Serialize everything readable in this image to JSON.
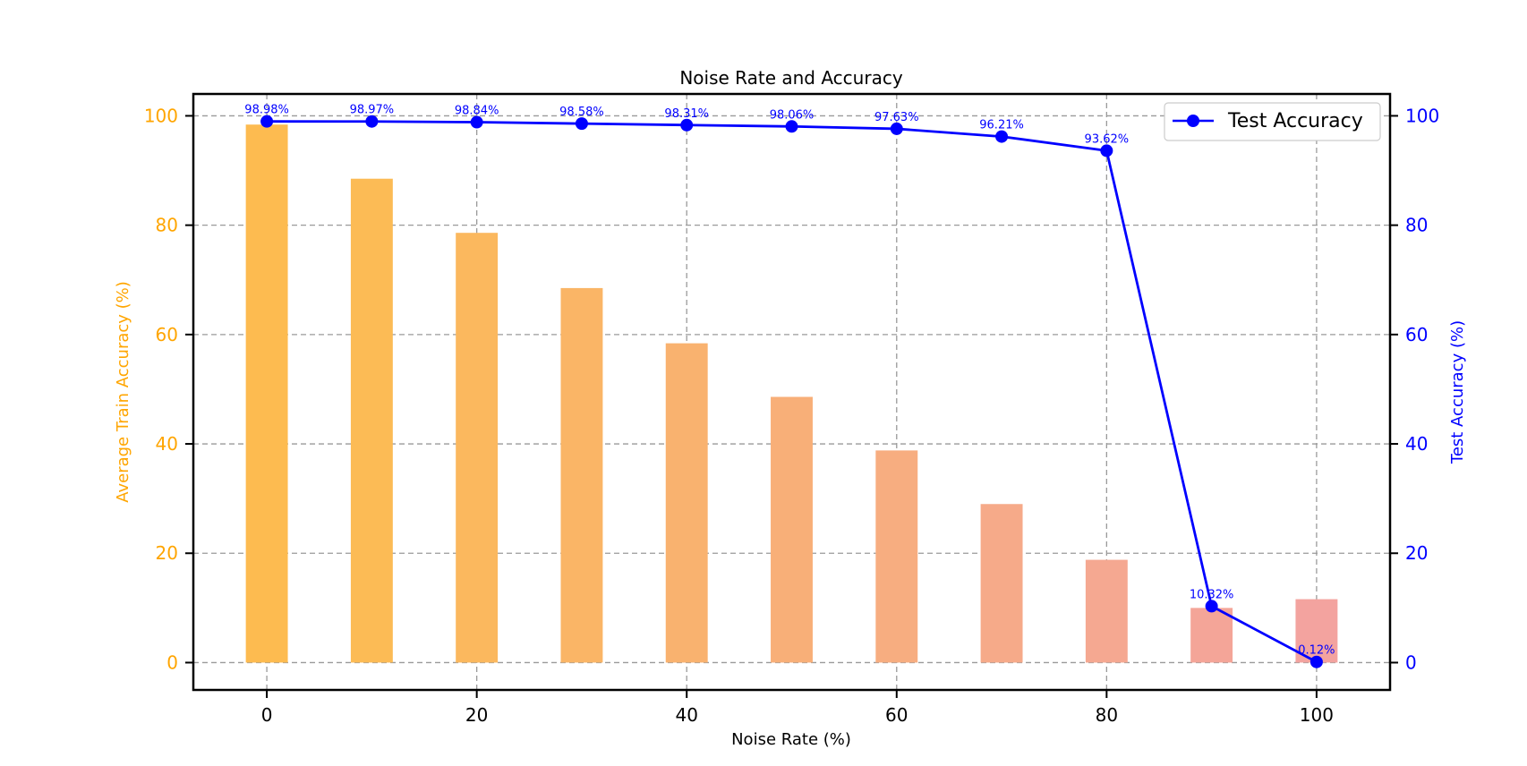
{
  "chart_data": {
    "type": "bar",
    "title": "Noise Rate and Accuracy",
    "xlabel": "Noise Rate (%)",
    "ylabel": "Average Train Accuracy (%)",
    "y2label": "Test Accuracy (%)",
    "x": [
      0,
      10,
      20,
      30,
      40,
      50,
      60,
      70,
      80,
      90,
      100
    ],
    "xlim": [
      -7,
      107
    ],
    "xticks": [
      0,
      20,
      40,
      60,
      80,
      100
    ],
    "ylim": [
      -5,
      104
    ],
    "yticks": [
      0,
      20,
      40,
      60,
      80,
      100
    ],
    "y2lim": [
      -5,
      104
    ],
    "y2ticks": [
      0,
      20,
      40,
      60,
      80,
      100
    ],
    "grid": true,
    "legend_position": "top-right",
    "series": [
      {
        "kind": "bar",
        "axis": "left",
        "values": [
          98.4,
          88.5,
          78.6,
          68.5,
          58.4,
          48.6,
          38.8,
          29.0,
          18.8,
          10.0,
          11.6
        ],
        "colors": [
          "#fdbb50",
          "#fcbb55",
          "#fbb85e",
          "#fab566",
          "#f9b26f",
          "#f8af78",
          "#f7ad80",
          "#f6aa89",
          "#f5a891",
          "#f4a598",
          "#f3a39f"
        ]
      },
      {
        "kind": "line",
        "axis": "right",
        "name": "Test Accuracy",
        "color": "#0000ff",
        "values": [
          98.98,
          98.97,
          98.84,
          98.58,
          98.31,
          98.06,
          97.63,
          96.21,
          93.62,
          10.32,
          0.12
        ],
        "labels": [
          "98.98%",
          "98.97%",
          "98.84%",
          "98.58%",
          "98.31%",
          "98.06%",
          "97.63%",
          "96.21%",
          "93.62%",
          "10.32%",
          "0.12%"
        ]
      }
    ],
    "colors": {
      "left_axis": "#ffa500",
      "right_axis": "#0000ff",
      "grid": "#9a9a9a"
    }
  }
}
